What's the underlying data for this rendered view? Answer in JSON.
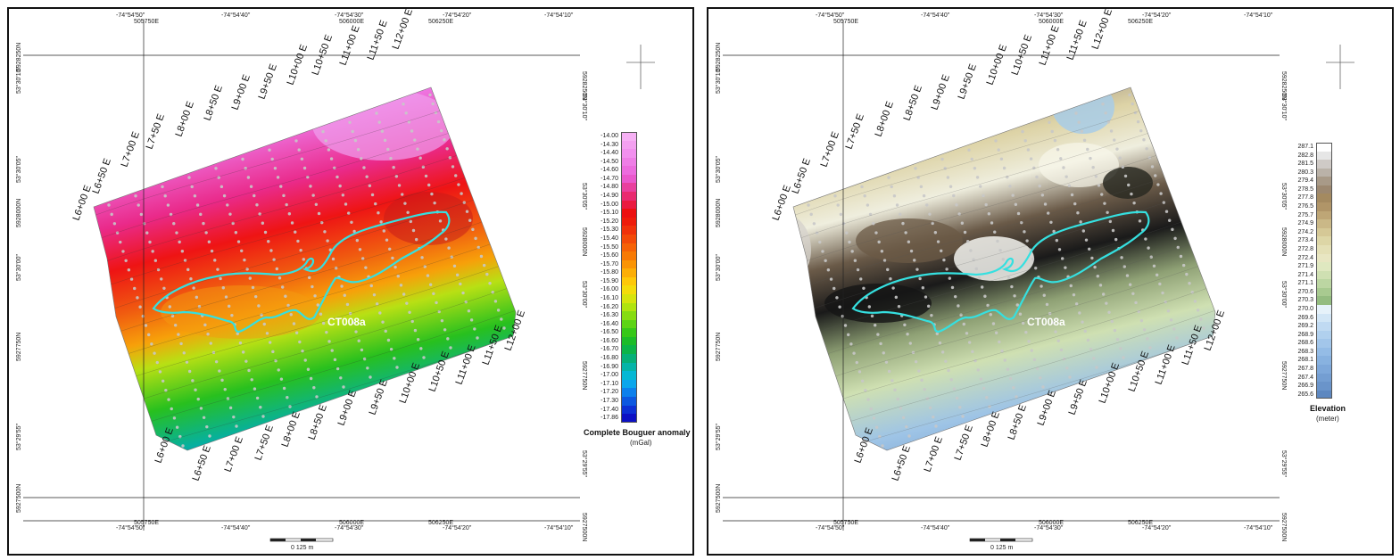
{
  "maps": [
    {
      "id": "gravity",
      "ticks_top": [
        "-74°54'50\"",
        "-74°54'40\"",
        "-74°54'30\"",
        "-74°54'20\"",
        "-74°54'10\""
      ],
      "ticks_top2": [
        "505750E",
        "506000E",
        "506250E"
      ],
      "ticks_bottom": [
        "-74°54'50\"",
        "-74°54'40\"",
        "-74°54'30\"",
        "-74°54'20\"",
        "-74°54'10\""
      ],
      "ticks_bottom2": [
        "505750E",
        "506000E",
        "506250E"
      ],
      "ticks_left": [
        "5928250N",
        "53°30'10\"",
        "53°30'05\"",
        "5928000N",
        "53°30'00\"",
        "5927750N",
        "53°29'55\"",
        "5927500N"
      ],
      "ticks_right": [
        "5928250N",
        "53°30'10\"",
        "53°30'05\"",
        "5928000N",
        "53°30'00\"",
        "5927750N",
        "53°29'55\"",
        "5927500N"
      ],
      "line_labels_top": [
        "L6+00 E",
        "L6+50 E",
        "L7+00 E",
        "L7+50 E",
        "L8+00 E",
        "L8+50 E",
        "L9+00 E",
        "L9+50 E",
        "L10+00 E",
        "L10+50 E",
        "L11+00 E",
        "L11+50 E",
        "L12+00 E"
      ],
      "line_labels_bottom": [
        "L6+00 E",
        "L6+50 E",
        "L7+00 E",
        "L7+50 E",
        "L8+00 E",
        "L8+50 E",
        "L9+00 E",
        "L9+50 E",
        "L10+00 E",
        "L10+50 E",
        "L11+00 E",
        "L11+50 E",
        "L12+00 E"
      ],
      "outline_label": "CT008a",
      "legend": {
        "title": "Complete Bouguer anomaly",
        "unit": "(mGal)",
        "values": [
          "-14.00",
          "-14.30",
          "-14.40",
          "-14.50",
          "-14.60",
          "-14.70",
          "-14.80",
          "-14.90",
          "-15.00",
          "-15.10",
          "-15.20",
          "-15.30",
          "-15.40",
          "-15.50",
          "-15.60",
          "-15.70",
          "-15.80",
          "-15.90",
          "-16.00",
          "-16.10",
          "-16.20",
          "-16.30",
          "-16.40",
          "-16.50",
          "-16.60",
          "-16.70",
          "-16.80",
          "-16.90",
          "-17.00",
          "-17.10",
          "-17.20",
          "-17.30",
          "-17.40",
          "-17.86"
        ],
        "colors": [
          "#f6b0f4",
          "#f3a0f0",
          "#f190ee",
          "#ee7ee6",
          "#ec6cde",
          "#ea58cc",
          "#e9409e",
          "#e92a70",
          "#ea1a40",
          "#ec1010",
          "#ee1c0a",
          "#f0320a",
          "#f34a08",
          "#f66206",
          "#f87a04",
          "#fa9404",
          "#fcae06",
          "#fec808",
          "#f4dc0a",
          "#d6e40c",
          "#b0e40e",
          "#86dc10",
          "#5cd414",
          "#36c818",
          "#1cbc28",
          "#0cb448",
          "#06b078",
          "#04b4a8",
          "#04b8d4",
          "#0aa6ec",
          "#0c80ec",
          "#0c58e0",
          "#0c30d4",
          "#0c10c4"
        ]
      },
      "scale_text": "0 125 m"
    },
    {
      "id": "elevation",
      "ticks_top": [
        "-74°54'50\"",
        "-74°54'40\"",
        "-74°54'30\"",
        "-74°54'20\"",
        "-74°54'10\""
      ],
      "ticks_top2": [
        "505750E",
        "506000E",
        "506250E"
      ],
      "ticks_bottom": [
        "-74°54'50\"",
        "-74°54'40\"",
        "-74°54'30\"",
        "-74°54'20\"",
        "-74°54'10\""
      ],
      "ticks_bottom2": [
        "505750E",
        "506000E",
        "506250E"
      ],
      "ticks_left": [
        "5928250N",
        "53°30'10\"",
        "53°30'05\"",
        "5928000N",
        "53°30'00\"",
        "5927750N",
        "53°29'55\"",
        "5927500N"
      ],
      "ticks_right": [
        "5928250N",
        "53°30'10\"",
        "53°30'05\"",
        "5928000N",
        "53°30'00\"",
        "5927750N",
        "53°29'55\"",
        "5927500N"
      ],
      "line_labels_top": [
        "L6+00 E",
        "L6+50 E",
        "L7+00 E",
        "L7+50 E",
        "L8+00 E",
        "L8+50 E",
        "L9+00 E",
        "L9+50 E",
        "L10+00 E",
        "L10+50 E",
        "L11+00 E",
        "L11+50 E",
        "L12+00 E"
      ],
      "line_labels_bottom": [
        "L6+00 E",
        "L6+50 E",
        "L7+00 E",
        "L7+50 E",
        "L8+00 E",
        "L8+50 E",
        "L9+00 E",
        "L9+50 E",
        "L10+00 E",
        "L10+50 E",
        "L11+00 E",
        "L11+50 E",
        "L12+00 E"
      ],
      "outline_label": "CT008a",
      "legend": {
        "title": "Elevation",
        "unit": "(meter)",
        "values": [
          "287.1",
          "282.8",
          "281.5",
          "280.3",
          "279.4",
          "278.5",
          "277.8",
          "276.5",
          "275.7",
          "274.9",
          "274.2",
          "273.4",
          "272.8",
          "272.4",
          "271.9",
          "271.4",
          "271.1",
          "270.6",
          "270.3",
          "270.0",
          "269.6",
          "269.2",
          "268.9",
          "268.6",
          "268.3",
          "268.1",
          "267.8",
          "267.4",
          "266.9",
          "265.6"
        ],
        "colors": [
          "#ffffff",
          "#e6e6e6",
          "#cfcac6",
          "#bab2a8",
          "#a89a88",
          "#9c8870",
          "#a48a60",
          "#b09568",
          "#bea676",
          "#cab887",
          "#d5c896",
          "#ddd6a6",
          "#e4e0b6",
          "#e8e6c2",
          "#dfe8c0",
          "#cfe0b2",
          "#bcd6a2",
          "#a8ca90",
          "#94bc80",
          "#e6f2fa",
          "#d2e6f6",
          "#c0daf2",
          "#b0d0ee",
          "#a2c6ea",
          "#94bce6",
          "#88b2e0",
          "#7ea8da",
          "#749ed2",
          "#6a94ca",
          "#5e88c0"
        ]
      },
      "scale_text": "0 125 m"
    }
  ]
}
